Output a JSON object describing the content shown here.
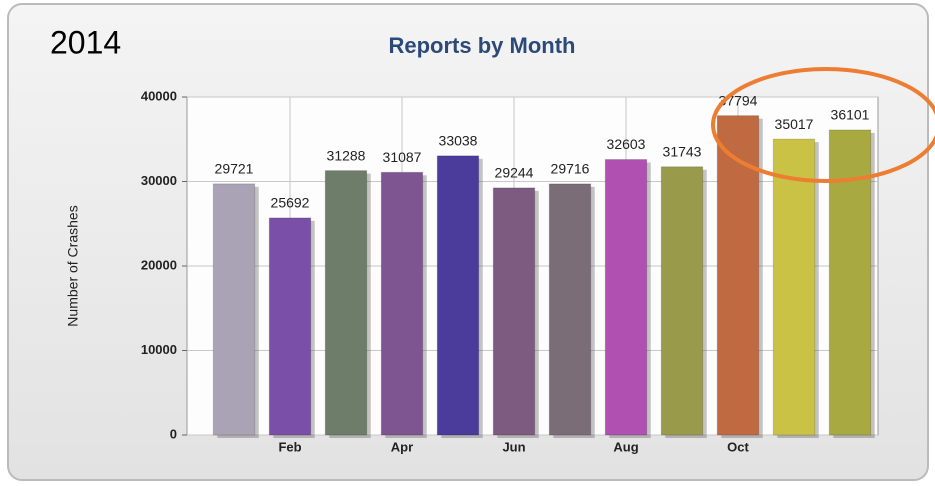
{
  "chart_data": {
    "type": "bar",
    "title": "Reports by Month",
    "year": "2014",
    "ylabel": "Number of Crashes",
    "categories": [
      null,
      "Feb",
      null,
      "Apr",
      null,
      "Jun",
      null,
      "Aug",
      null,
      "Oct",
      null,
      null
    ],
    "values": [
      29721,
      25692,
      31288,
      31087,
      33038,
      29244,
      29716,
      32603,
      31743,
      37794,
      35017,
      36101
    ],
    "colors": [
      "#a9a3b5",
      "#7a4fa8",
      "#6d7d69",
      "#7e5590",
      "#4b3b9b",
      "#7d5a80",
      "#7b6d78",
      "#b050b0",
      "#999a4a",
      "#c06a42",
      "#c9c244",
      "#a9a941"
    ],
    "ylim": [
      0,
      40000
    ],
    "yticks": [
      0,
      10000,
      20000,
      30000,
      40000
    ],
    "grid": true
  }
}
